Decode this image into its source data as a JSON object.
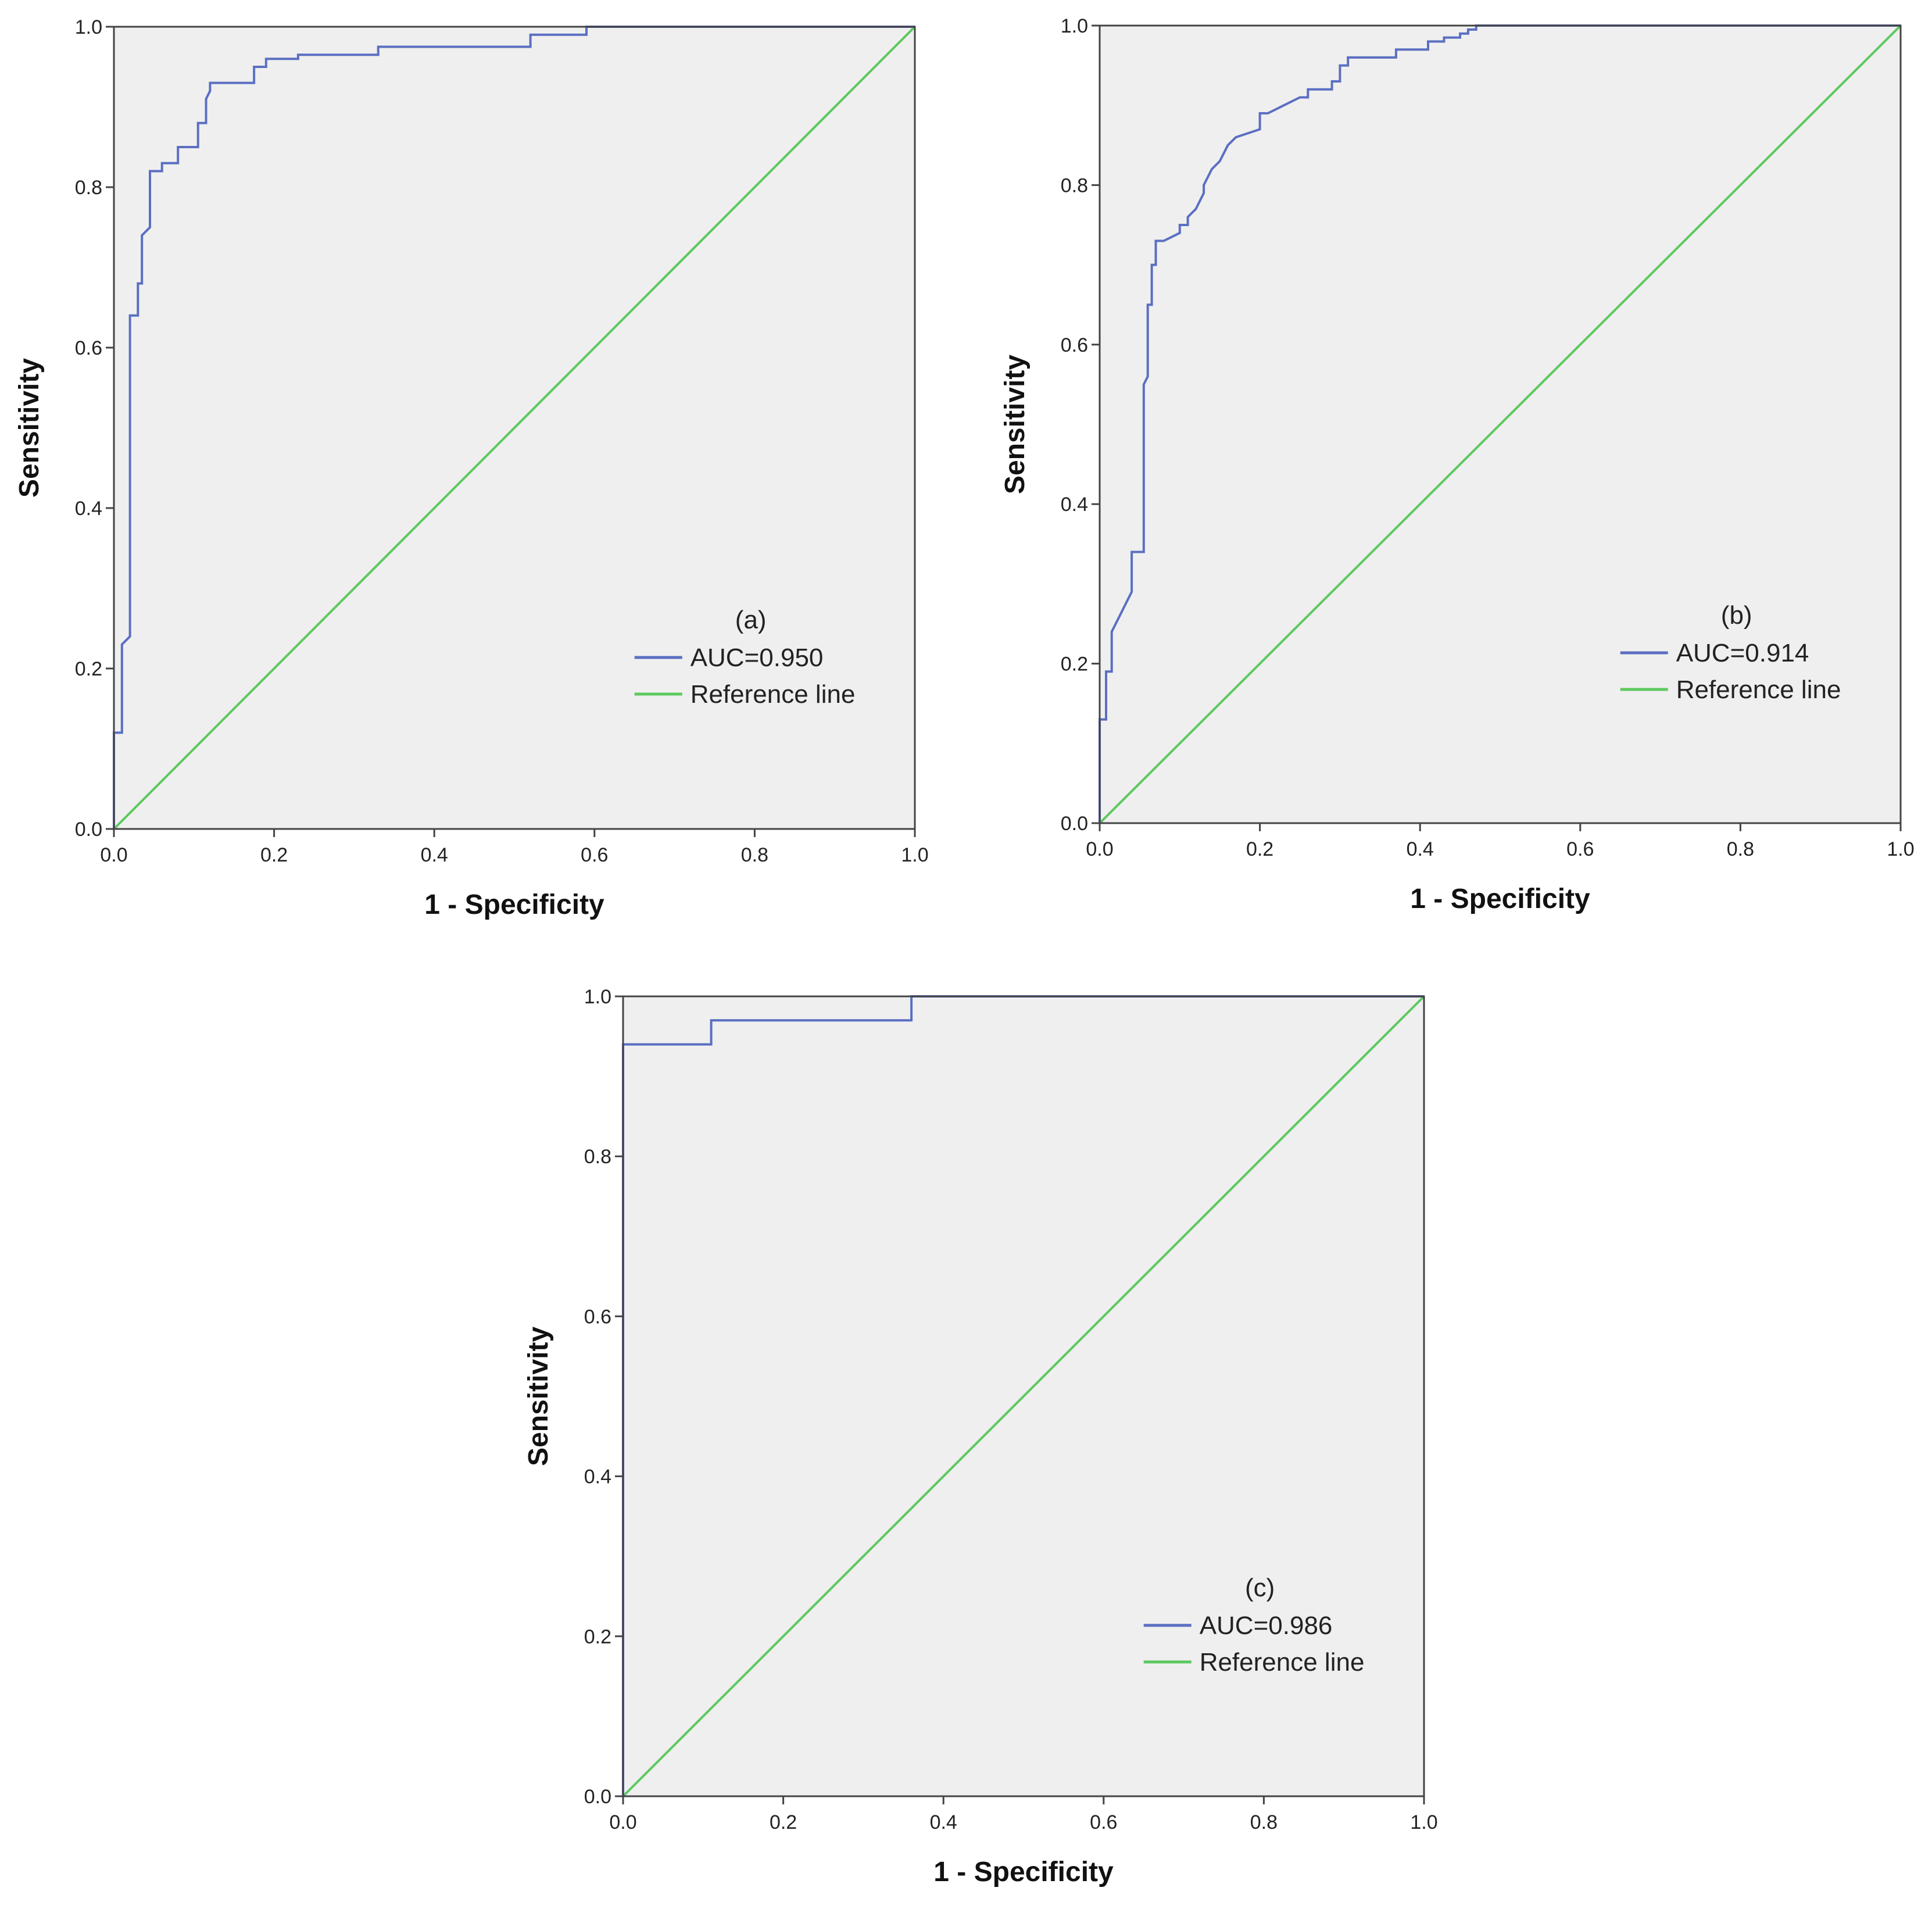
{
  "colors": {
    "roc": "#5b6fc2",
    "reference": "#5cc95e",
    "plot_bg": "#efefef",
    "frame": "#444444"
  },
  "chart_data": [
    {
      "type": "line",
      "panel": "(a)",
      "xlabel": "1 - Specificity",
      "ylabel": "Sensitivity",
      "xlim": [
        0,
        1
      ],
      "ylim": [
        0,
        1
      ],
      "xticks": [
        "0.0",
        "0.2",
        "0.4",
        "0.6",
        "0.8",
        "1.0"
      ],
      "yticks": [
        "0.0",
        "0.2",
        "0.4",
        "0.6",
        "0.8",
        "1.0"
      ],
      "legend": {
        "position": "lower-right",
        "title": "(a)",
        "entries": [
          "AUC=0.950",
          "Reference line"
        ]
      },
      "series": [
        {
          "name": "AUC=0.950",
          "x": [
            0,
            0,
            0.01,
            0.01,
            0.02,
            0.02,
            0.03,
            0.03,
            0.035,
            0.035,
            0.045,
            0.045,
            0.06,
            0.06,
            0.08,
            0.08,
            0.105,
            0.105,
            0.115,
            0.115,
            0.12,
            0.12,
            0.175,
            0.175,
            0.19,
            0.19,
            0.23,
            0.23,
            0.33,
            0.33,
            0.52,
            0.52,
            0.59,
            0.59,
            1.0
          ],
          "y": [
            0,
            0.12,
            0.12,
            0.23,
            0.24,
            0.64,
            0.64,
            0.68,
            0.68,
            0.74,
            0.75,
            0.82,
            0.82,
            0.83,
            0.83,
            0.85,
            0.85,
            0.88,
            0.88,
            0.91,
            0.92,
            0.93,
            0.93,
            0.95,
            0.95,
            0.96,
            0.96,
            0.965,
            0.965,
            0.975,
            0.975,
            0.99,
            0.99,
            1.0,
            1.0
          ]
        },
        {
          "name": "Reference line",
          "x": [
            0,
            1
          ],
          "y": [
            0,
            1
          ]
        }
      ]
    },
    {
      "type": "line",
      "panel": "(b)",
      "xlabel": "1 - Specificity",
      "ylabel": "Sensitivity",
      "xlim": [
        0,
        1
      ],
      "ylim": [
        0,
        1
      ],
      "xticks": [
        "0.0",
        "0.2",
        "0.4",
        "0.6",
        "0.8",
        "1.0"
      ],
      "yticks": [
        "0.0",
        "0.2",
        "0.4",
        "0.6",
        "0.8",
        "1.0"
      ],
      "legend": {
        "position": "lower-right",
        "title": "(b)",
        "entries": [
          "AUC=0.914",
          "Reference line"
        ]
      },
      "series": [
        {
          "name": "AUC=0.914",
          "x": [
            0,
            0,
            0.008,
            0.008,
            0.015,
            0.015,
            0.02,
            0.025,
            0.03,
            0.035,
            0.04,
            0.04,
            0.055,
            0.055,
            0.06,
            0.06,
            0.065,
            0.065,
            0.07,
            0.07,
            0.08,
            0.1,
            0.1,
            0.11,
            0.11,
            0.12,
            0.13,
            0.13,
            0.14,
            0.15,
            0.16,
            0.17,
            0.17,
            0.2,
            0.2,
            0.21,
            0.23,
            0.23,
            0.25,
            0.26,
            0.26,
            0.29,
            0.29,
            0.3,
            0.3,
            0.31,
            0.31,
            0.37,
            0.37,
            0.41,
            0.41,
            0.43,
            0.43,
            0.45,
            0.45,
            0.46,
            0.46,
            0.47,
            0.47,
            1.0
          ],
          "y": [
            0,
            0.13,
            0.13,
            0.19,
            0.19,
            0.24,
            0.25,
            0.26,
            0.27,
            0.28,
            0.29,
            0.34,
            0.34,
            0.55,
            0.56,
            0.65,
            0.65,
            0.7,
            0.7,
            0.73,
            0.73,
            0.74,
            0.75,
            0.75,
            0.76,
            0.77,
            0.79,
            0.8,
            0.82,
            0.83,
            0.85,
            0.86,
            0.86,
            0.87,
            0.89,
            0.89,
            0.9,
            0.9,
            0.91,
            0.91,
            0.92,
            0.92,
            0.93,
            0.93,
            0.95,
            0.95,
            0.96,
            0.96,
            0.97,
            0.97,
            0.98,
            0.98,
            0.985,
            0.985,
            0.99,
            0.99,
            0.995,
            0.995,
            1.0,
            1.0
          ]
        },
        {
          "name": "Reference line",
          "x": [
            0,
            1
          ],
          "y": [
            0,
            1
          ]
        }
      ]
    },
    {
      "type": "line",
      "panel": "(c)",
      "xlabel": "1 - Specificity",
      "ylabel": "Sensitivity",
      "xlim": [
        0,
        1
      ],
      "ylim": [
        0,
        1
      ],
      "xticks": [
        "0.0",
        "0.2",
        "0.4",
        "0.6",
        "0.8",
        "1.0"
      ],
      "yticks": [
        "0.0",
        "0.2",
        "0.4",
        "0.6",
        "0.8",
        "1.0"
      ],
      "legend": {
        "position": "lower-right",
        "title": "(c)",
        "entries": [
          "AUC=0.986",
          "Reference line"
        ]
      },
      "series": [
        {
          "name": "AUC=0.986",
          "x": [
            0,
            0,
            0.11,
            0.11,
            0.36,
            0.36,
            1.0
          ],
          "y": [
            0,
            0.94,
            0.94,
            0.97,
            0.97,
            1.0,
            1.0
          ]
        },
        {
          "name": "Reference line",
          "x": [
            0,
            1
          ],
          "y": [
            0,
            1
          ]
        }
      ]
    }
  ]
}
